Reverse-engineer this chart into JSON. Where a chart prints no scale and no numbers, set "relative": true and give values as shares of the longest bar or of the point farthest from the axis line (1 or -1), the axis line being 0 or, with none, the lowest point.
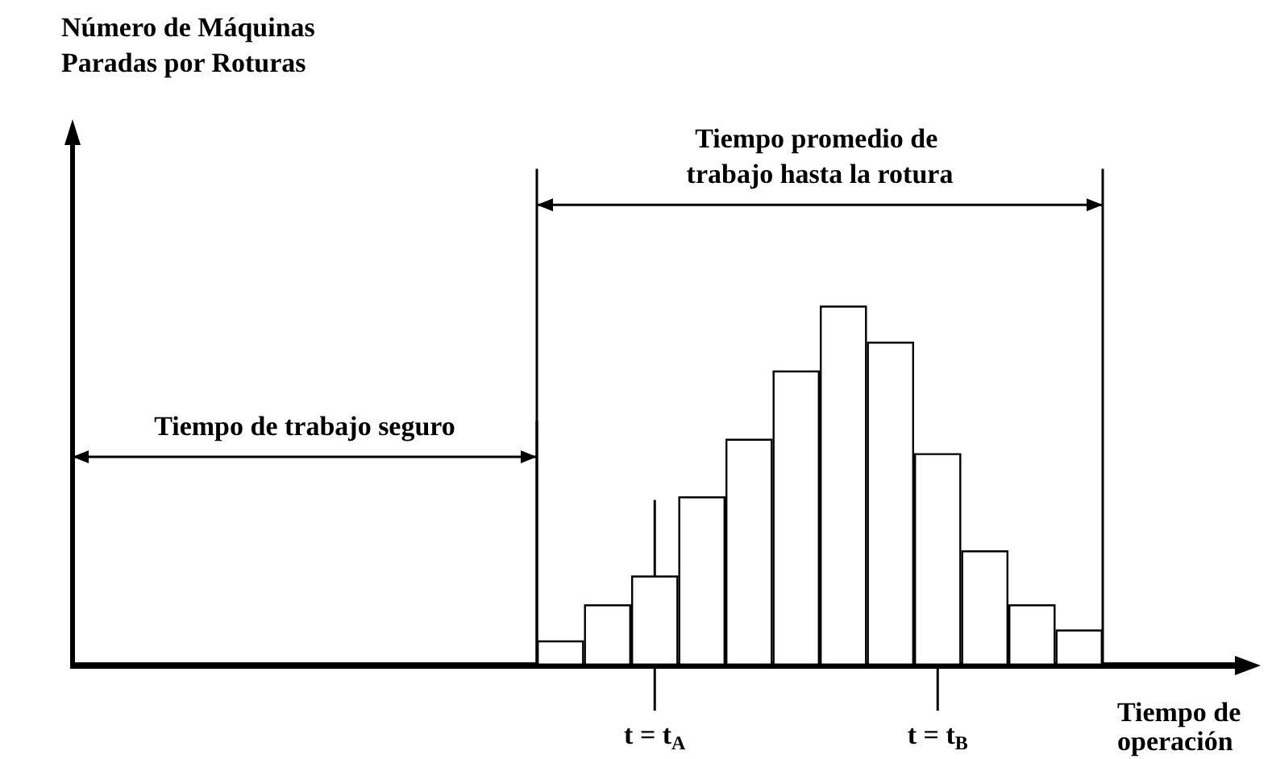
{
  "chart_data": {
    "type": "bar",
    "relative": true,
    "xlabel": "Tiempo de operación",
    "categories": [
      null,
      null,
      null,
      null,
      null,
      null,
      null,
      null,
      null,
      null,
      null,
      null
    ],
    "values": [
      0.07,
      0.17,
      0.25,
      0.47,
      0.63,
      0.82,
      1,
      0.9,
      0.59,
      0.32,
      0.17,
      0.1
    ],
    "color": "#ffffff",
    "annotations": [
      "Número de Máquinas Paradas por Roturas",
      "Tiempo promedio de trabajo hasta la rotura",
      "Tiempo de trabajo seguro",
      "t = t$_{A}$",
      "t = t$_{B}$"
    ]
  }
}
